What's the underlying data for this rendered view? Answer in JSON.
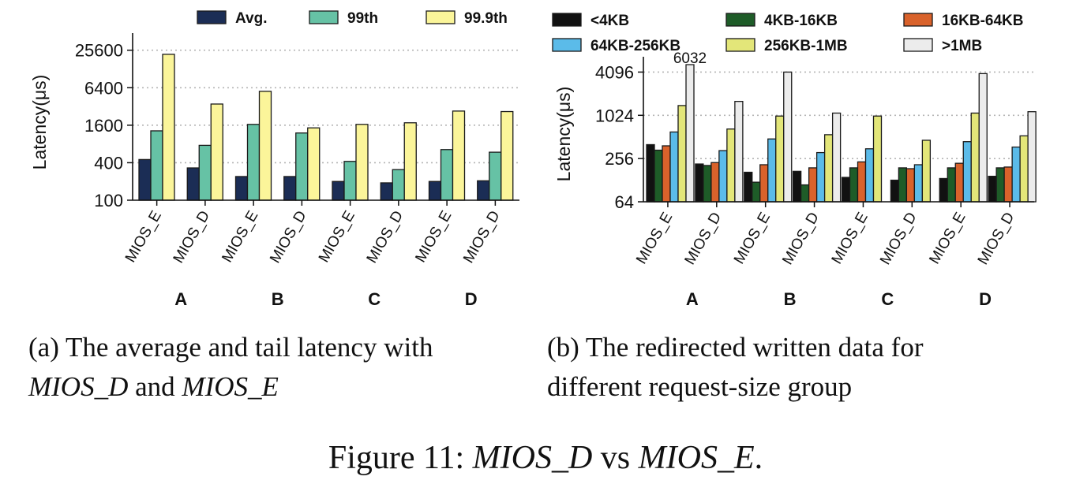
{
  "chart_data": [
    {
      "type": "bar",
      "scale": "log2",
      "ylabel": "Latency(μs)",
      "yticks": [
        "100",
        "400",
        "1600",
        "6400",
        "25600"
      ],
      "ytick_values": [
        100,
        400,
        1600,
        6400,
        25600
      ],
      "ylim": [
        100,
        36000
      ],
      "grid": "horizontal dotted",
      "legend_position": "top",
      "categories": [
        "MIOS_E",
        "MIOS_D",
        "MIOS_E",
        "MIOS_D",
        "MIOS_E",
        "MIOS_D",
        "MIOS_E",
        "MIOS_D"
      ],
      "groups": [
        "A",
        "B",
        "C",
        "D"
      ],
      "series": [
        {
          "name": "Avg.",
          "color": "#1b2d55",
          "values": [
            450,
            330,
            240,
            240,
            200,
            190,
            200,
            205
          ]
        },
        {
          "name": "99th",
          "color": "#66c2a5",
          "values": [
            1300,
            760,
            1650,
            1200,
            420,
            310,
            650,
            590
          ]
        },
        {
          "name": "99.9th",
          "color": "#fbf59a",
          "values": [
            22000,
            3500,
            5600,
            1450,
            1650,
            1750,
            2700,
            2650
          ]
        }
      ],
      "caption": {
        "prefix": "(a)  The average and tail latency with",
        "term1": "MIOS_D",
        "joiner": " and ",
        "term2": "MIOS_E"
      }
    },
    {
      "type": "bar",
      "scale": "log2",
      "ylabel": "Latency(μs)",
      "yticks": [
        "64",
        "256",
        "1024",
        "4096"
      ],
      "ytick_values": [
        64,
        256,
        1024,
        4096
      ],
      "ylim": [
        64,
        5200
      ],
      "grid": "horizontal dotted",
      "legend_position": "top",
      "annotation": {
        "text": "6032",
        "value": 6032
      },
      "categories": [
        "MIOS_E",
        "MIOS_D",
        "MIOS_E",
        "MIOS_D",
        "MIOS_E",
        "MIOS_D",
        "MIOS_E",
        "MIOS_D"
      ],
      "groups": [
        "A",
        "B",
        "C",
        "D"
      ],
      "series": [
        {
          "name": "<4KB",
          "color": "#111111",
          "values": [
            400,
            215,
            165,
            170,
            140,
            128,
            135,
            145
          ]
        },
        {
          "name": "4KB-16KB",
          "color": "#1e5c28",
          "values": [
            335,
            205,
            120,
            110,
            190,
            190,
            190,
            190
          ]
        },
        {
          "name": "16KB-64KB",
          "color": "#d9622b",
          "values": [
            385,
            225,
            210,
            190,
            230,
            185,
            220,
            195
          ]
        },
        {
          "name": "64KB-256KB",
          "color": "#5bbbe9",
          "values": [
            600,
            330,
            480,
            310,
            350,
            210,
            440,
            370
          ]
        },
        {
          "name": "256KB-1MB",
          "color": "#e3e679",
          "values": [
            1400,
            660,
            1000,
            550,
            1000,
            460,
            1100,
            530
          ]
        },
        {
          "name": ">1MB",
          "color": "#ececec",
          "values": [
            6032,
            1600,
            4096,
            1100,
            null,
            null,
            3900,
            1150
          ]
        }
      ],
      "caption": {
        "line1": "(b)  The redirected written data for",
        "line2": "different request-size group"
      }
    }
  ],
  "figure_caption": {
    "prefix": "Figure 11: ",
    "term1": "MIOS_D",
    "joiner": " vs ",
    "term2": "MIOS_E",
    "suffix": "."
  }
}
